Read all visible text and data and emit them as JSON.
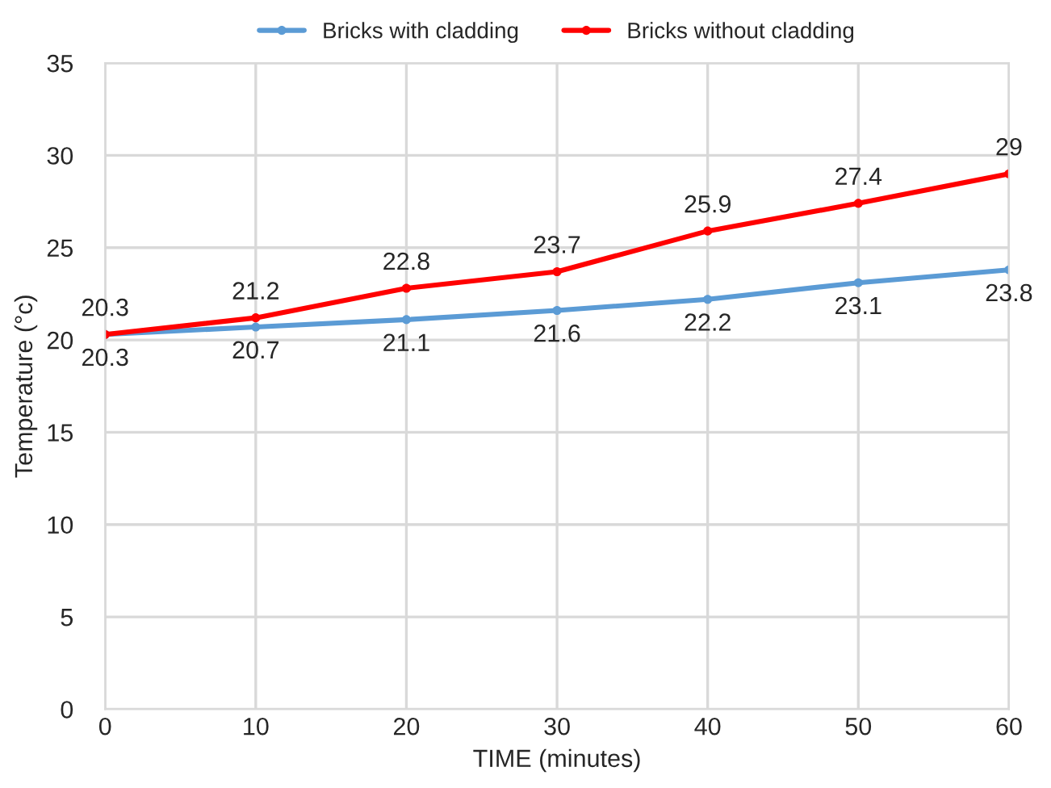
{
  "chart_data": {
    "type": "line",
    "xlabel": "TIME (minutes)",
    "ylabel": "Temperature (°c)",
    "x": [
      0,
      10,
      20,
      30,
      40,
      50,
      60
    ],
    "series": [
      {
        "name": "Bricks with cladding",
        "color": "#5b9bd5",
        "values": [
          20.3,
          20.7,
          21.1,
          21.6,
          22.2,
          23.1,
          23.8
        ]
      },
      {
        "name": "Bricks without cladding",
        "color": "#ff0000",
        "values": [
          20.3,
          21.2,
          22.8,
          23.7,
          25.9,
          27.4,
          29
        ]
      }
    ],
    "xlim": [
      0,
      60
    ],
    "xticks": [
      0,
      10,
      20,
      30,
      40,
      50,
      60
    ],
    "ylim": [
      0,
      35
    ],
    "yticks": [
      0,
      5,
      10,
      15,
      20,
      25,
      30,
      35
    ],
    "grid": true,
    "legend": "top",
    "marker": "circle",
    "line_style": "solid",
    "data_labels": true
  }
}
